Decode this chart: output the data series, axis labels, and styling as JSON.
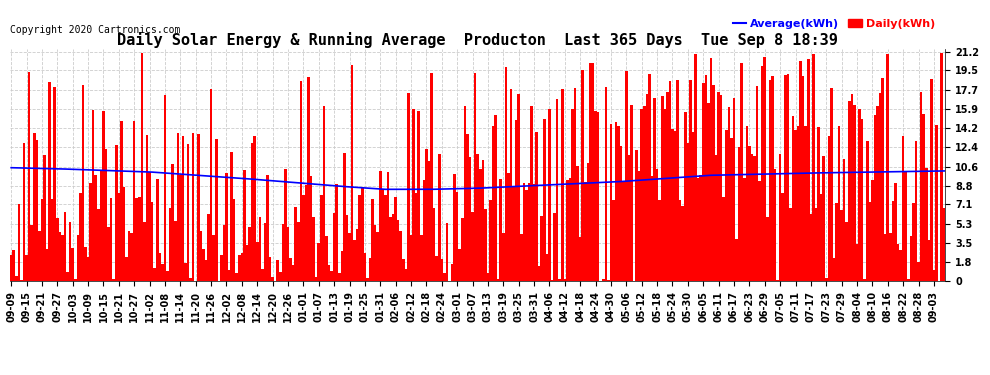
{
  "title": "Daily Solar Energy & Running Average  Producton  Last 365 Days  Tue Sep 8 18:39",
  "copyright": "Copyright 2020 Cartronics.com",
  "legend_average": "Average(kWh)",
  "legend_daily": "Daily(kWh)",
  "yticks": [
    0.0,
    1.8,
    3.5,
    5.3,
    7.1,
    8.8,
    10.6,
    12.4,
    14.2,
    15.9,
    17.7,
    19.5,
    21.2
  ],
  "ymax": 21.2,
  "ymin": 0.0,
  "bar_color": "#ff0000",
  "avg_line_color": "#0000ff",
  "background_color": "#ffffff",
  "grid_color": "#cccccc",
  "title_fontsize": 11,
  "copyright_fontsize": 7,
  "tick_fontsize": 7,
  "n_bars": 365,
  "avg_line_points": [
    10.5,
    10.5,
    10.4,
    10.4,
    10.3,
    10.3,
    10.2,
    10.2,
    10.1,
    10.1,
    10.0,
    9.9,
    9.9,
    9.8,
    9.8,
    9.7,
    9.7,
    9.6,
    9.6,
    9.5,
    9.5,
    9.5,
    9.4,
    9.4,
    9.3,
    9.3,
    9.2,
    9.2,
    9.1,
    9.1,
    9.0,
    9.0,
    9.0,
    8.95,
    8.95,
    8.9,
    8.9,
    8.85,
    8.85,
    8.8,
    8.8,
    8.8,
    8.8,
    8.8,
    8.8,
    8.75,
    8.75,
    8.75,
    8.7,
    8.7,
    8.7,
    8.7,
    8.65,
    8.65,
    8.65,
    8.6,
    8.6,
    8.6,
    8.6,
    8.6,
    8.55,
    8.55,
    8.55,
    8.5,
    8.5,
    8.5,
    8.5,
    8.5,
    8.5,
    8.5,
    8.5,
    8.5,
    8.5,
    8.5,
    8.5,
    8.55,
    8.55,
    8.6,
    8.6,
    8.65,
    8.7,
    8.75,
    8.8,
    8.85,
    8.9,
    8.95,
    9.0,
    9.05,
    9.1,
    9.15,
    9.2,
    9.25,
    9.3,
    9.35,
    9.4,
    9.45,
    9.5,
    9.55,
    9.6,
    9.65,
    9.7,
    9.75,
    9.8,
    9.85,
    9.9,
    9.92,
    9.94,
    9.96,
    9.98,
    10.0,
    10.0,
    10.0,
    10.0,
    10.0,
    10.0,
    10.0,
    10.0,
    10.0,
    10.0,
    10.0,
    10.0,
    10.0,
    10.0,
    10.0,
    10.0,
    10.0,
    10.0,
    10.0,
    10.0,
    10.0,
    10.0,
    10.0,
    10.02,
    10.04,
    10.06,
    10.08,
    10.1,
    10.1,
    10.1,
    10.1,
    10.1,
    10.1,
    10.1,
    10.1,
    10.1,
    10.1,
    10.1,
    10.1,
    10.1,
    10.1,
    10.1,
    10.1,
    10.1,
    10.1,
    10.1,
    10.1,
    10.1,
    10.1,
    10.1,
    10.1,
    10.1,
    10.1,
    10.1,
    10.1,
    10.1,
    10.1,
    10.1,
    10.1,
    10.1,
    10.1,
    10.1,
    10.1,
    10.1,
    10.1,
    10.1,
    10.1,
    10.1,
    10.1,
    10.1,
    10.1,
    10.1,
    10.1,
    10.1,
    10.1,
    10.1,
    10.1,
    10.1,
    10.1,
    10.1,
    10.1,
    10.1,
    10.1,
    10.1,
    10.1,
    10.1,
    10.1,
    10.1,
    10.1,
    10.1,
    10.1,
    10.1,
    10.1,
    10.1,
    10.1,
    10.1,
    10.1,
    10.1,
    10.1,
    10.1,
    10.1,
    10.1,
    10.1,
    10.1,
    10.1,
    10.1,
    10.1,
    10.1,
    10.1,
    10.1,
    10.1,
    10.1,
    10.1,
    10.1,
    10.1,
    10.1,
    10.1,
    10.1,
    10.1,
    10.1,
    10.1,
    10.1,
    10.1,
    10.1,
    10.1,
    10.1,
    10.1,
    10.1,
    10.1,
    10.1,
    10.1,
    10.1,
    10.1,
    10.1,
    10.1,
    10.1,
    10.1,
    10.1,
    10.1,
    10.1,
    10.1,
    10.15,
    10.2,
    10.2,
    10.2,
    10.2,
    10.2,
    10.2,
    10.2,
    10.2,
    10.2,
    10.2,
    10.2,
    10.2,
    10.2,
    10.2,
    10.2,
    10.2,
    10.2,
    10.2,
    10.2,
    10.2,
    10.2,
    10.2,
    10.2,
    10.2,
    10.2,
    10.2,
    10.2,
    10.2,
    10.2,
    10.2,
    10.2,
    10.2,
    10.2,
    10.2,
    10.2,
    10.2,
    10.2,
    10.2,
    10.2,
    10.2,
    10.2,
    10.2,
    10.2,
    10.2,
    10.2,
    10.2,
    10.2,
    10.2,
    10.2,
    10.2,
    10.2,
    10.2,
    10.2,
    10.2,
    10.2,
    10.2,
    10.2,
    10.2,
    10.2,
    10.2,
    10.2,
    10.2,
    10.2,
    10.2,
    10.2,
    10.2,
    10.2,
    10.2,
    10.2,
    10.2,
    10.2,
    10.2,
    10.2,
    10.2,
    10.2,
    10.2,
    10.2,
    10.2,
    10.2,
    10.2,
    10.2,
    10.2,
    10.2,
    10.2,
    10.2,
    10.2,
    10.2,
    10.2,
    10.2,
    10.2,
    10.2,
    10.2,
    10.2,
    10.2,
    10.2,
    10.2,
    10.2,
    10.2,
    10.2,
    10.2,
    10.2,
    10.2,
    10.2,
    10.2,
    10.2,
    10.2,
    10.2,
    10.2,
    10.2,
    10.2,
    10.2,
    10.2,
    10.2,
    10.2
  ],
  "xtick_labels": [
    "09-09",
    "09-15",
    "09-21",
    "09-27",
    "10-03",
    "10-09",
    "10-15",
    "10-21",
    "10-27",
    "11-02",
    "11-08",
    "11-14",
    "11-20",
    "11-26",
    "12-02",
    "12-08",
    "12-14",
    "12-20",
    "12-26",
    "01-01",
    "01-07",
    "01-13",
    "01-19",
    "01-25",
    "01-31",
    "02-06",
    "02-12",
    "02-18",
    "02-24",
    "03-01",
    "03-07",
    "03-13",
    "03-19",
    "03-25",
    "03-31",
    "04-06",
    "04-12",
    "04-18",
    "04-24",
    "04-30",
    "05-06",
    "05-12",
    "05-18",
    "05-24",
    "05-30",
    "06-05",
    "06-11",
    "06-17",
    "06-23",
    "06-29",
    "07-05",
    "07-11",
    "07-17",
    "07-23",
    "07-29",
    "08-04",
    "08-10",
    "08-16",
    "08-22",
    "08-28",
    "09-03"
  ],
  "xtick_step": 6
}
